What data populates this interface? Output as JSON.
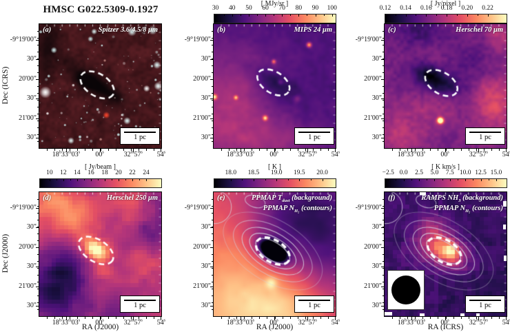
{
  "title": "HMSC G022.5309-0.1927",
  "axis": {
    "dec_title_top": "Dec (ICRS)",
    "dec_title_bottom": "Dec (J2000)",
    "dec_ticks": [
      "-9°19'00\"",
      "30\"",
      "20'00\"",
      "30\"",
      "21'00\"",
      "30\""
    ],
    "ra_ticks": [
      "18^{h}33^{m}03^{s}",
      "00^{s}",
      "32^{m}57^{s}",
      "54^{s}"
    ],
    "ra_titles": [
      "RA (J2000)",
      "RA (J2000)",
      "RA (ICRS)"
    ]
  },
  "panels": [
    {
      "id": "a",
      "label": "(a)",
      "lines": [
        "Spitzer 3.6/4.5/8 μm"
      ],
      "scalebar": "1 pc",
      "colorbar": null
    },
    {
      "id": "b",
      "label": "(b)",
      "lines": [
        "MIPS 24 μm"
      ],
      "scalebar": "1 pc",
      "colorbar": {
        "title": "[ MJy/sr ]",
        "ticks": [
          "30",
          "40",
          "50",
          "60",
          "70",
          "80",
          "90",
          "100"
        ]
      }
    },
    {
      "id": "c",
      "label": "(c)",
      "lines": [
        "Herschel 70 μm"
      ],
      "scalebar": "1 pc",
      "colorbar": {
        "title": "[ Jy/pixel ]",
        "ticks": [
          "0.12",
          "0.14",
          "0.16",
          "0.18",
          "0.20",
          "0.22"
        ]
      }
    },
    {
      "id": "d",
      "label": "(d)",
      "lines": [
        "Herschel 250 μm"
      ],
      "scalebar": "1 pc",
      "colorbar": {
        "title": "[ Jy/beam ]",
        "ticks": [
          "10",
          "12",
          "14",
          "16",
          "18",
          "20",
          "22",
          "24"
        ]
      }
    },
    {
      "id": "e",
      "label": "(e)",
      "lines": [
        "PPMAP T_{dust} (background)",
        "PPMAP N_{H₂} (contours)"
      ],
      "scalebar": "1 pc",
      "colorbar": {
        "title": "[ K ]",
        "ticks": [
          "18.0",
          "18.5",
          "19.0",
          "19.5",
          "20.0"
        ]
      }
    },
    {
      "id": "f",
      "label": "(f)",
      "lines": [
        "RAMPS NH_{3} (background)",
        "PPMAP N_{H₂} (contours)"
      ],
      "scalebar": "1 pc",
      "colorbar": {
        "title": "[ K km/s ]",
        "ticks": [
          "−2.5",
          "0.0",
          "2.5",
          "5.0",
          "7.5",
          "10.0",
          "12.5",
          "15.0"
        ]
      }
    }
  ]
}
